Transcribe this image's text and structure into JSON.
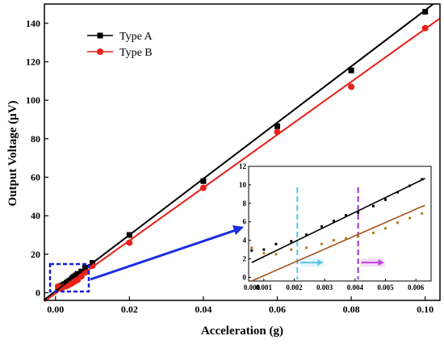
{
  "chart_data": {
    "type": "scatter",
    "xlabel": "Acceleration (g)",
    "ylabel": "Output Voltage (μV)",
    "xlim": [
      -0.003,
      0.104
    ],
    "ylim": [
      -4,
      150
    ],
    "x_ticks": [
      0.0,
      0.02,
      0.04,
      0.06,
      0.08,
      0.1
    ],
    "x_tick_labels": [
      "0.00",
      "0.02",
      "0.04",
      "0.06",
      "0.08",
      "0.10"
    ],
    "y_ticks": [
      0,
      20,
      40,
      60,
      80,
      100,
      120,
      140
    ],
    "y_tick_labels": [
      "0",
      "20",
      "40",
      "60",
      "80",
      "100",
      "120",
      "140"
    ],
    "grid": false,
    "legend_position": "top-left",
    "series": [
      {
        "name": "Type A",
        "color": "#000000",
        "marker": "square",
        "fit_line": {
          "slope": 1460,
          "intercept": 0.8
        },
        "x": [
          0.0007,
          0.001,
          0.0015,
          0.002,
          0.0025,
          0.003,
          0.0035,
          0.004,
          0.0045,
          0.005,
          0.0055,
          0.006,
          0.007,
          0.008,
          0.01,
          0.02,
          0.04,
          0.06,
          0.08,
          0.1
        ],
        "y": [
          2.8,
          3.0,
          3.5,
          4.0,
          4.5,
          5.2,
          5.9,
          6.5,
          7.6,
          8.3,
          9.0,
          9.8,
          11.0,
          13.0,
          15.5,
          30.0,
          58.0,
          86.5,
          115.5,
          146.0
        ]
      },
      {
        "name": "Type B",
        "color": "#e8201a",
        "marker": "circle",
        "fit_line": {
          "slope": 1375,
          "intercept": -0.4
        },
        "x": [
          0.0007,
          0.001,
          0.0015,
          0.002,
          0.0025,
          0.003,
          0.0035,
          0.004,
          0.0045,
          0.005,
          0.0055,
          0.006,
          0.007,
          0.008,
          0.01,
          0.02,
          0.04,
          0.06,
          0.08,
          0.1
        ],
        "y": [
          3.2,
          2.6,
          2.5,
          2.9,
          3.3,
          3.5,
          4.0,
          4.5,
          5.0,
          5.6,
          6.2,
          6.7,
          8.5,
          10.5,
          14.0,
          26.0,
          54.5,
          83.5,
          107.0,
          137.5
        ]
      }
    ],
    "inset": {
      "xlim": [
        0.0005,
        0.0065
      ],
      "ylim": [
        -0.4,
        12
      ],
      "x_ticks": [
        0.0,
        0.001,
        0.002,
        0.003,
        0.004,
        0.005,
        0.006
      ],
      "x_tick_labels": [
        "0.000",
        "0.001",
        "0.002",
        "0.003",
        "0.004",
        "0.005",
        "0.006"
      ],
      "y_ticks": [
        0,
        2,
        4,
        6,
        8,
        10,
        12
      ],
      "y_tick_labels": [
        "0",
        "2",
        "4",
        "6",
        "8",
        "10",
        "12"
      ],
      "series_points": [
        {
          "color": "#000000",
          "line_color": "#000000",
          "line": [
            [
              0.0006,
              1.6
            ],
            [
              0.0063,
              10.7
            ]
          ],
          "x": [
            0.0006,
            0.001,
            0.0014,
            0.0019,
            0.0024,
            0.0029,
            0.0033,
            0.0037,
            0.0041,
            0.0046,
            0.005,
            0.0054,
            0.0058,
            0.0062
          ],
          "y": [
            2.9,
            3.0,
            3.6,
            3.9,
            4.6,
            5.5,
            6.1,
            6.7,
            7.0,
            7.7,
            8.4,
            9.2,
            9.9,
            10.6
          ]
        },
        {
          "color": "#b87a20",
          "line_color": "#a5521b",
          "line": [
            [
              0.0006,
              -0.4
            ],
            [
              0.0063,
              7.8
            ]
          ],
          "x": [
            0.0006,
            0.001,
            0.0014,
            0.0019,
            0.0024,
            0.0029,
            0.0033,
            0.0037,
            0.0041,
            0.0046,
            0.005,
            0.0054,
            0.0058,
            0.0062
          ],
          "y": [
            3.2,
            2.6,
            2.5,
            3.0,
            3.2,
            3.6,
            4.0,
            4.2,
            4.4,
            4.8,
            5.3,
            5.9,
            6.4,
            6.9
          ]
        }
      ],
      "vlines": [
        {
          "x": 0.0021,
          "color": "#57c6e8",
          "arrow_color": "#57c6e8"
        },
        {
          "x": 0.0041,
          "color": "#9b2fd6",
          "arrow_color": "#c03fe0"
        }
      ]
    }
  }
}
